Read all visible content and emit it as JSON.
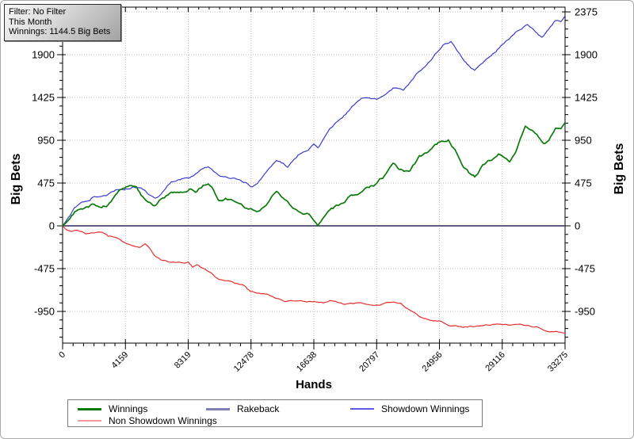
{
  "header_box": {
    "lines": [
      "Filter: No Filter",
      "This Month",
      "Winnings: 1144.5 Big Bets"
    ]
  },
  "chart_data": {
    "type": "line",
    "title": "",
    "xlabel": "Hands",
    "ylabel_left": "Big Bets",
    "ylabel_right": "Big Bets",
    "xlim": [
      0,
      33275
    ],
    "ylim": [
      -1302,
      2428
    ],
    "x_ticks": [
      0,
      4159,
      8319,
      12478,
      16638,
      20797,
      24956,
      29116,
      33275
    ],
    "y_ticks": [
      2375,
      1900,
      1425,
      950,
      475,
      0,
      -475,
      -950
    ],
    "x_minor_divisions": 6,
    "y_minor_step": 95,
    "grid": "dotted",
    "grid_color": "#bcbcbc",
    "axis_color": "#000000",
    "legend_position": "bottom-left",
    "series": [
      {
        "name": "Winnings",
        "color": "#0b7a0b",
        "legend_color": "#0b7a0b",
        "width": 1.7,
        "noise": 13,
        "points": [
          [
            0,
            0
          ],
          [
            400,
            60
          ],
          [
            800,
            150
          ],
          [
            1300,
            190
          ],
          [
            1600,
            215
          ],
          [
            2100,
            245
          ],
          [
            2500,
            205
          ],
          [
            2900,
            225
          ],
          [
            3300,
            290
          ],
          [
            3800,
            390
          ],
          [
            4200,
            420
          ],
          [
            4550,
            435
          ],
          [
            4900,
            415
          ],
          [
            5200,
            330
          ],
          [
            5600,
            245
          ],
          [
            6100,
            205
          ],
          [
            6500,
            290
          ],
          [
            7200,
            375
          ],
          [
            7700,
            390
          ],
          [
            8100,
            370
          ],
          [
            8500,
            420
          ],
          [
            8900,
            395
          ],
          [
            9300,
            455
          ],
          [
            9650,
            460
          ],
          [
            10000,
            395
          ],
          [
            10340,
            290
          ],
          [
            10800,
            300
          ],
          [
            11200,
            295
          ],
          [
            11600,
            270
          ],
          [
            12070,
            200
          ],
          [
            12600,
            185
          ],
          [
            12960,
            175
          ],
          [
            13490,
            260
          ],
          [
            14170,
            400
          ],
          [
            14600,
            330
          ],
          [
            14900,
            260
          ],
          [
            15590,
            140
          ],
          [
            16270,
            115
          ],
          [
            16900,
            15
          ],
          [
            17400,
            130
          ],
          [
            17900,
            185
          ],
          [
            18370,
            225
          ],
          [
            19000,
            320
          ],
          [
            19420,
            345
          ],
          [
            19800,
            390
          ],
          [
            20300,
            430
          ],
          [
            20800,
            460
          ],
          [
            21300,
            540
          ],
          [
            21880,
            660
          ],
          [
            22300,
            615
          ],
          [
            22800,
            605
          ],
          [
            23000,
            620
          ],
          [
            23620,
            760
          ],
          [
            24100,
            800
          ],
          [
            24670,
            880
          ],
          [
            25100,
            930
          ],
          [
            25550,
            955
          ],
          [
            26000,
            840
          ],
          [
            26450,
            700
          ],
          [
            26900,
            600
          ],
          [
            27290,
            550
          ],
          [
            27700,
            640
          ],
          [
            28180,
            720
          ],
          [
            28860,
            790
          ],
          [
            29300,
            720
          ],
          [
            29600,
            690
          ],
          [
            30000,
            800
          ],
          [
            30640,
            1090
          ],
          [
            31100,
            1030
          ],
          [
            31500,
            970
          ],
          [
            31850,
            895
          ],
          [
            32200,
            930
          ],
          [
            32640,
            1080
          ],
          [
            33000,
            1090
          ],
          [
            33275,
            1144.5
          ]
        ]
      },
      {
        "name": "Rakeback",
        "color": "#4a4a70",
        "legend_color": "#8080b4",
        "width": 1.8,
        "noise": 0,
        "points": [
          [
            0,
            0
          ],
          [
            33275,
            0
          ]
        ]
      },
      {
        "name": "Showdown Winnings",
        "color": "#3b3bcf",
        "legend_color": "#5c5ce6",
        "width": 1.2,
        "noise": 9,
        "points": [
          [
            0,
            0
          ],
          [
            400,
            100
          ],
          [
            800,
            205
          ],
          [
            1300,
            255
          ],
          [
            1800,
            285
          ],
          [
            2100,
            330
          ],
          [
            2500,
            310
          ],
          [
            2900,
            320
          ],
          [
            3400,
            385
          ],
          [
            3880,
            420
          ],
          [
            4400,
            430
          ],
          [
            4700,
            445
          ],
          [
            5000,
            420
          ],
          [
            5400,
            390
          ],
          [
            5800,
            335
          ],
          [
            6140,
            300
          ],
          [
            6500,
            340
          ],
          [
            7000,
            450
          ],
          [
            7200,
            486
          ],
          [
            7700,
            520
          ],
          [
            8200,
            540
          ],
          [
            8700,
            565
          ],
          [
            9200,
            615
          ],
          [
            9650,
            650
          ],
          [
            10000,
            595
          ],
          [
            10340,
            565
          ],
          [
            11000,
            545
          ],
          [
            11390,
            530
          ],
          [
            12070,
            480
          ],
          [
            12478,
            445
          ],
          [
            12800,
            455
          ],
          [
            13490,
            590
          ],
          [
            14170,
            720
          ],
          [
            14600,
            685
          ],
          [
            14900,
            655
          ],
          [
            15300,
            725
          ],
          [
            15590,
            780
          ],
          [
            16270,
            840
          ],
          [
            16640,
            905
          ],
          [
            16900,
            870
          ],
          [
            17300,
            965
          ],
          [
            17690,
            1070
          ],
          [
            18200,
            1155
          ],
          [
            18740,
            1240
          ],
          [
            19300,
            1335
          ],
          [
            19790,
            1415
          ],
          [
            20300,
            1395
          ],
          [
            20797,
            1390
          ],
          [
            21300,
            1445
          ],
          [
            21880,
            1530
          ],
          [
            22570,
            1505
          ],
          [
            23000,
            1585
          ],
          [
            23620,
            1720
          ],
          [
            24200,
            1805
          ],
          [
            24670,
            1910
          ],
          [
            25200,
            1995
          ],
          [
            25720,
            2040
          ],
          [
            26100,
            1950
          ],
          [
            26600,
            1840
          ],
          [
            27000,
            1760
          ],
          [
            27290,
            1720
          ],
          [
            27700,
            1800
          ],
          [
            28180,
            1875
          ],
          [
            28700,
            1950
          ],
          [
            29116,
            2025
          ],
          [
            29500,
            2080
          ],
          [
            30000,
            2150
          ],
          [
            30400,
            2205
          ],
          [
            30800,
            2240
          ],
          [
            31200,
            2185
          ],
          [
            31750,
            2100
          ],
          [
            32200,
            2180
          ],
          [
            32640,
            2270
          ],
          [
            33000,
            2255
          ],
          [
            33275,
            2330
          ]
        ]
      },
      {
        "name": "Non Showdown Winnings",
        "color": "#e62e2e",
        "legend_color": "#f59898",
        "width": 1.2,
        "noise": 6,
        "points": [
          [
            0,
            0
          ],
          [
            250,
            -45
          ],
          [
            600,
            -70
          ],
          [
            1000,
            -62
          ],
          [
            1500,
            -92
          ],
          [
            2000,
            -80
          ],
          [
            2600,
            -62
          ],
          [
            3000,
            -112
          ],
          [
            3360,
            -130
          ],
          [
            3880,
            -162
          ],
          [
            4160,
            -190
          ],
          [
            4600,
            -215
          ],
          [
            5090,
            -235
          ],
          [
            5460,
            -205
          ],
          [
            5800,
            -262
          ],
          [
            6040,
            -320
          ],
          [
            6510,
            -380
          ],
          [
            7200,
            -405
          ],
          [
            8080,
            -415
          ],
          [
            8320,
            -405
          ],
          [
            8600,
            -462
          ],
          [
            8900,
            -425
          ],
          [
            9300,
            -470
          ],
          [
            9650,
            -510
          ],
          [
            10340,
            -595
          ],
          [
            11230,
            -625
          ],
          [
            11910,
            -652
          ],
          [
            12440,
            -738
          ],
          [
            13120,
            -755
          ],
          [
            13850,
            -782
          ],
          [
            14690,
            -825
          ],
          [
            15600,
            -840
          ],
          [
            16640,
            -842
          ],
          [
            17320,
            -845
          ],
          [
            17800,
            -822
          ],
          [
            18740,
            -868
          ],
          [
            19790,
            -855
          ],
          [
            20800,
            -885
          ],
          [
            21720,
            -845
          ],
          [
            22400,
            -868
          ],
          [
            22930,
            -930
          ],
          [
            23620,
            -1000
          ],
          [
            24350,
            -1042
          ],
          [
            24960,
            -1060
          ],
          [
            25560,
            -1100
          ],
          [
            26450,
            -1130
          ],
          [
            27130,
            -1120
          ],
          [
            27800,
            -1100
          ],
          [
            28400,
            -1095
          ],
          [
            28860,
            -1086
          ],
          [
            29500,
            -1102
          ],
          [
            30280,
            -1105
          ],
          [
            31330,
            -1120
          ],
          [
            32220,
            -1160
          ],
          [
            33060,
            -1185
          ],
          [
            33275,
            -1190
          ]
        ]
      }
    ]
  },
  "legend": {
    "items": [
      {
        "label": "Winnings"
      },
      {
        "label": "Rakeback"
      },
      {
        "label": "Showdown Winnings"
      },
      {
        "label": "Non Showdown Winnings"
      }
    ]
  }
}
